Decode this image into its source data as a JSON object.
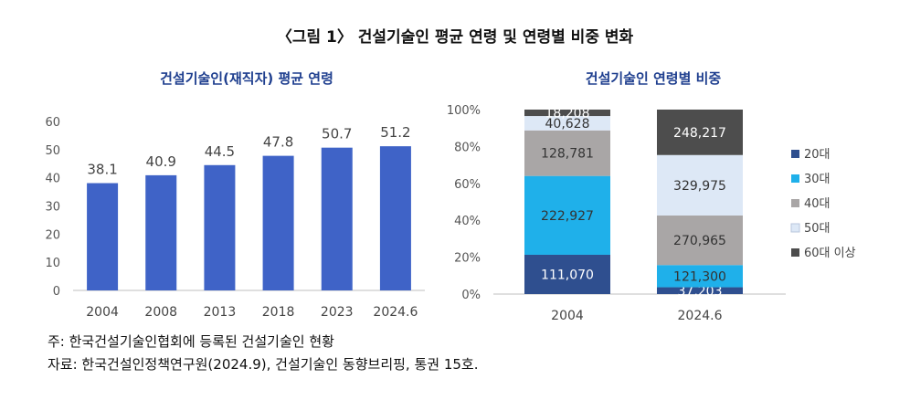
{
  "figure_title": "〈그림 1〉 건설기술인 평균 연령 및 연령별 비중 변화",
  "notes": {
    "note1": "주: 한국건설기술인협회에 등록된 건설기술인 현황",
    "note2": "자료: 한국건설인정책연구원(2024.9), 건설기술인 동향브리핑, 통권 15호."
  },
  "chart_data": [
    {
      "type": "bar",
      "title": "건설기술인(재직자) 평균 연령",
      "categories": [
        "2004",
        "2008",
        "2013",
        "2018",
        "2023",
        "2024.6"
      ],
      "values": [
        38.1,
        40.9,
        44.5,
        47.8,
        50.7,
        51.2
      ],
      "y_ticks": [
        0,
        10,
        20,
        30,
        40,
        50,
        60
      ],
      "ylim": [
        0,
        60
      ],
      "grid": false,
      "bar_color": "#3f63c7"
    },
    {
      "type": "bar",
      "stacked": true,
      "normalized": true,
      "title": "건설기술인 연령별 비중",
      "categories": [
        "2004",
        "2024.6"
      ],
      "y_ticks": [
        "0%",
        "20%",
        "40%",
        "60%",
        "80%",
        "100%"
      ],
      "ylim": [
        0,
        100
      ],
      "legend_position": "right",
      "series": [
        {
          "name": "20대",
          "color": "#2f4f8f",
          "label_color": "#ffffff",
          "values": [
            111070,
            37203
          ],
          "labels": [
            "111,070",
            "37,203"
          ]
        },
        {
          "name": "30대",
          "color": "#1fb0ea",
          "label_color": "#333333",
          "values": [
            222927,
            121300
          ],
          "labels": [
            "222,927",
            "121,300"
          ]
        },
        {
          "name": "40대",
          "color": "#a9a6a6",
          "label_color": "#333333",
          "values": [
            128781,
            270965
          ],
          "labels": [
            "128,781",
            "270,965"
          ]
        },
        {
          "name": "50대",
          "color": "#dde8f6",
          "label_color": "#333333",
          "values": [
            40628,
            329975
          ],
          "labels": [
            "40,628",
            "329,975"
          ]
        },
        {
          "name": "60대 이상",
          "color": "#4d4d4d",
          "label_color": "#ffffff",
          "values": [
            18208,
            248217
          ],
          "labels": [
            "18,208",
            "248,217"
          ]
        }
      ]
    }
  ]
}
